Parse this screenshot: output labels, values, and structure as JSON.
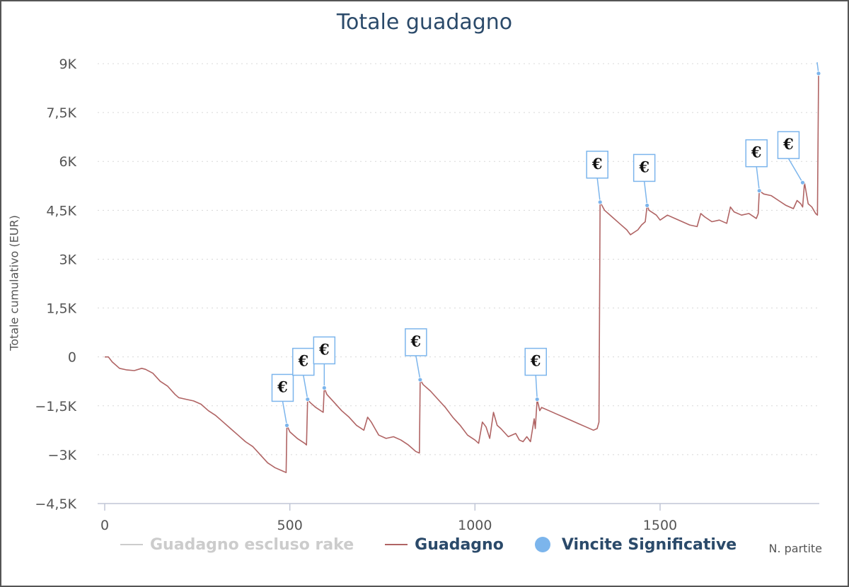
{
  "chart_data": {
    "type": "line",
    "title": "Totale guadagno",
    "ylabel": "Totale cumulativo (EUR)",
    "xlabel": "N. partite",
    "xlim": [
      0,
      1930
    ],
    "ylim": [
      -4500,
      9000
    ],
    "x_ticks": [
      0,
      500,
      1000,
      1500
    ],
    "x_tick_labels": [
      "0",
      "500",
      "1000",
      "1500"
    ],
    "y_ticks": [
      9000,
      7500,
      6000,
      4500,
      3000,
      1500,
      0,
      -1500,
      -3000,
      -4500
    ],
    "y_tick_labels": [
      "9K",
      "7,5K",
      "6K",
      "4,5K",
      "3K",
      "1,5K",
      "0",
      "−1,5K",
      "−3K",
      "−4,5K"
    ],
    "grid": true,
    "legend_position": "bottom",
    "series": [
      {
        "name": "Guadagno escluso rake",
        "color": "#cccccc",
        "visible": false,
        "x": [],
        "y": []
      },
      {
        "name": "Guadagno",
        "color": "#b06464",
        "x": [
          0,
          10,
          20,
          40,
          60,
          80,
          100,
          110,
          130,
          150,
          170,
          190,
          200,
          220,
          240,
          260,
          280,
          300,
          320,
          340,
          360,
          380,
          400,
          420,
          440,
          460,
          480,
          490,
          492,
          500,
          520,
          540,
          545,
          548,
          555,
          570,
          590,
          593,
          600,
          620,
          640,
          660,
          680,
          700,
          710,
          720,
          730,
          740,
          760,
          780,
          800,
          820,
          840,
          850,
          852,
          860,
          880,
          900,
          920,
          940,
          960,
          980,
          1000,
          1010,
          1020,
          1030,
          1040,
          1050,
          1060,
          1070,
          1090,
          1110,
          1120,
          1130,
          1140,
          1150,
          1160,
          1163,
          1168,
          1175,
          1180,
          1200,
          1220,
          1240,
          1260,
          1280,
          1300,
          1320,
          1330,
          1335,
          1338,
          1350,
          1370,
          1390,
          1410,
          1420,
          1440,
          1450,
          1460,
          1465,
          1470,
          1490,
          1500,
          1520,
          1540,
          1560,
          1580,
          1600,
          1610,
          1620,
          1640,
          1660,
          1680,
          1690,
          1700,
          1720,
          1740,
          1760,
          1765,
          1768,
          1780,
          1800,
          1820,
          1840,
          1860,
          1870,
          1880,
          1885,
          1890,
          1900,
          1910,
          1920,
          1925,
          1928
        ],
        "y": [
          0,
          0,
          -150,
          -350,
          -400,
          -420,
          -350,
          -380,
          -500,
          -750,
          -900,
          -1150,
          -1250,
          -1300,
          -1350,
          -1450,
          -1650,
          -1800,
          -2000,
          -2200,
          -2400,
          -2600,
          -2750,
          -3000,
          -3250,
          -3400,
          -3500,
          -3550,
          -2100,
          -2300,
          -2500,
          -2650,
          -2700,
          -1300,
          -1400,
          -1550,
          -1700,
          -950,
          -1150,
          -1400,
          -1650,
          -1850,
          -2100,
          -2250,
          -1850,
          -2000,
          -2200,
          -2400,
          -2500,
          -2450,
          -2550,
          -2700,
          -2900,
          -2950,
          -700,
          -850,
          -1050,
          -1300,
          -1550,
          -1850,
          -2100,
          -2400,
          -2550,
          -2650,
          -2000,
          -2150,
          -2500,
          -1700,
          -2100,
          -2200,
          -2450,
          -2350,
          -2550,
          -2600,
          -2450,
          -2600,
          -1900,
          -2200,
          -1300,
          -1650,
          -1550,
          -1650,
          -1750,
          -1850,
          -1950,
          -2050,
          -2150,
          -2250,
          -2200,
          -2000,
          4750,
          4500,
          4300,
          4100,
          3900,
          3750,
          3900,
          4050,
          4150,
          4650,
          4500,
          4350,
          4200,
          4350,
          4250,
          4150,
          4050,
          4000,
          4400,
          4300,
          4150,
          4200,
          4100,
          4600,
          4450,
          4350,
          4400,
          4250,
          4400,
          5100,
          5000,
          4950,
          4800,
          4650,
          4550,
          4800,
          4700,
          4600,
          5350,
          4700,
          4600,
          4400,
          4350,
          8700
        ]
      },
      {
        "name": "Vincite Significative",
        "type": "scatter",
        "color": "#7cb5ec",
        "x": [
          492,
          548,
          593,
          852,
          1168,
          1338,
          1465,
          1768,
          1885,
          1928
        ],
        "y": [
          -2100,
          -1300,
          -950,
          -700,
          -1300,
          4750,
          4650,
          5100,
          5350,
          8700
        ],
        "labels": [
          "€",
          "€",
          "€",
          "€",
          "€",
          "€",
          "€",
          "€",
          "€",
          "€"
        ]
      }
    ]
  },
  "legend": {
    "items": [
      "Guadagno escluso rake",
      "Guadagno",
      "Vincite Significative"
    ]
  }
}
